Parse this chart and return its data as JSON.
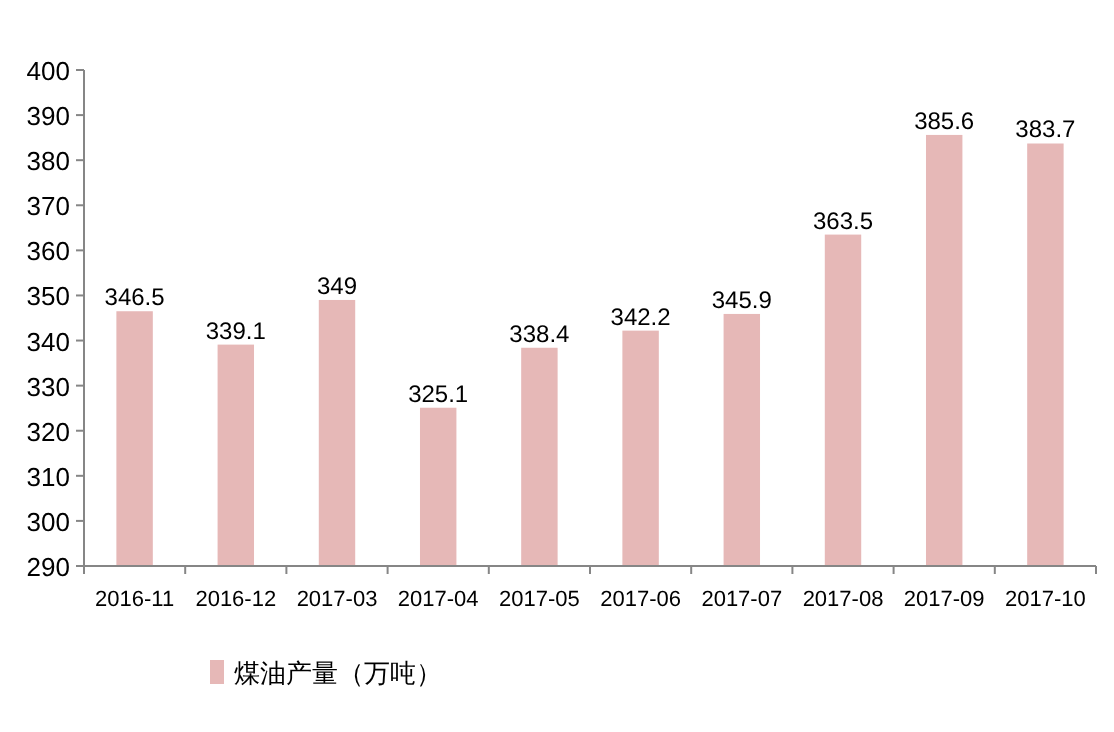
{
  "chart_data": {
    "type": "bar",
    "categories": [
      "2016-11",
      "2016-12",
      "2017-03",
      "2017-04",
      "2017-05",
      "2017-06",
      "2017-07",
      "2017-08",
      "2017-09",
      "2017-10"
    ],
    "series": [
      {
        "name": "煤油产量（万吨）",
        "color": "#e6b8b7",
        "values": [
          346.5,
          339.1,
          349,
          325.1,
          338.4,
          342.2,
          345.9,
          363.5,
          385.6,
          383.7
        ]
      }
    ],
    "ylim": [
      290,
      400
    ],
    "yticks": [
      290,
      300,
      310,
      320,
      330,
      340,
      350,
      360,
      370,
      380,
      390,
      400
    ],
    "data_labels": true,
    "legend": "bottom",
    "grid": false
  }
}
